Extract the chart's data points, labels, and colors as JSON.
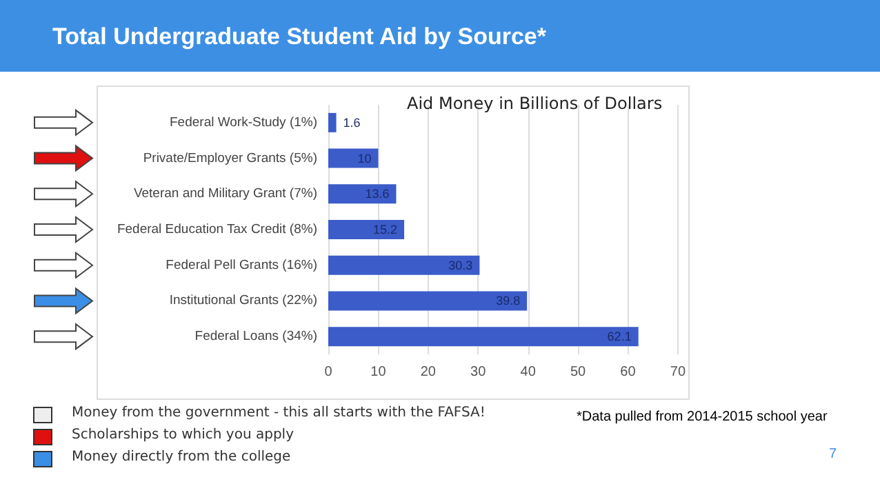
{
  "chart_data": {
    "type": "bar",
    "orientation": "horizontal",
    "title": "Total Undergraduate Student Aid by Source*",
    "subtitle": "Aid Money in Billions of Dollars",
    "categories": [
      "Federal Work-Study (1%)",
      "Private/Employer Grants (5%)",
      "Veteran and Military Grant (7%)",
      "Federal Education Tax Credit (8%)",
      "Federal Pell Grants (16%)",
      "Institutional Grants (22%)",
      "Federal Loans (34%)"
    ],
    "values": [
      1.6,
      10,
      13.6,
      15.2,
      30.3,
      39.8,
      62.1
    ],
    "color": "#3b5cc9",
    "xlim": [
      0,
      70
    ],
    "xticks": [
      0,
      10,
      20,
      30,
      40,
      50,
      60,
      70
    ],
    "grid": "x",
    "data_labels": true,
    "annotations": [
      "Money from the government - this all starts with the FAFSA!",
      "Scholarships to which you apply",
      "Money directly from the college",
      "*Data pulled from 2014-2015 school year",
      "7"
    ]
  }
}
